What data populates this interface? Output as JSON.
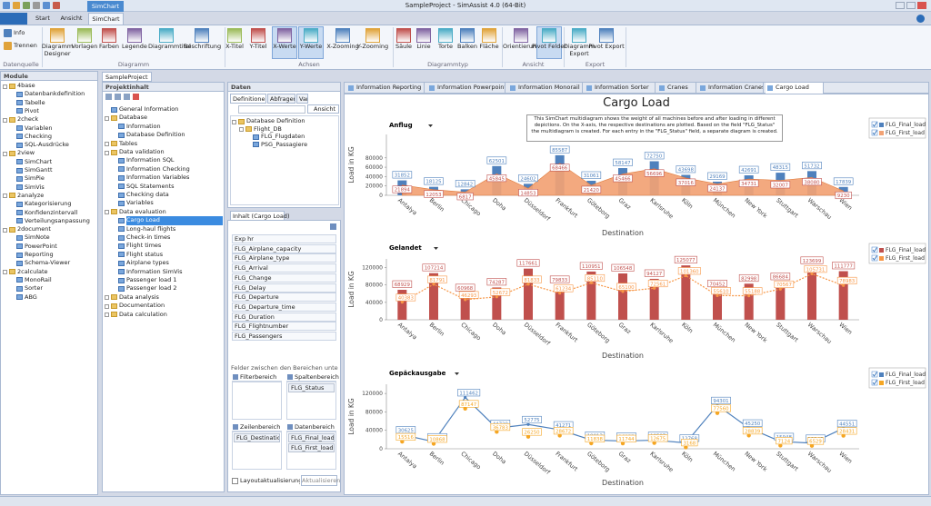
{
  "window": {
    "title": "SampleProject - SimAssist 4.0 (64-Bit)",
    "context_tab": "SimChart",
    "tabs": [
      "Start",
      "Ansicht",
      "SimChart"
    ]
  },
  "ribbon": {
    "groups": [
      {
        "label": "Datenquelle",
        "buttons": [
          "Info",
          "Trennen"
        ]
      },
      {
        "label": "Diagramm",
        "buttons": [
          "Diagramm Designer",
          "Vorlagen",
          "Farben",
          "Legende",
          "Diagrammtitel",
          "Beschriftung"
        ]
      },
      {
        "label": "Achsen",
        "buttons": [
          "X-Titel",
          "Y-Titel",
          "X-Werte",
          "Y-Werte",
          "X-Zooming",
          "Y-Zooming"
        ]
      },
      {
        "label": "Diagrammtyp",
        "buttons": [
          "Säule",
          "Linie",
          "Torte",
          "Balken",
          "Fläche"
        ]
      },
      {
        "label": "Ansicht",
        "buttons": [
          "Orientierung",
          "Pivot Felder"
        ]
      },
      {
        "label": "Export",
        "buttons": [
          "Diagramm Export",
          "Pivot Export"
        ]
      }
    ]
  },
  "modules": {
    "title": "Module",
    "tree": [
      {
        "label": "4base",
        "children": [
          "Datenbankdefinition",
          "Tabelle",
          "Pivot"
        ]
      },
      {
        "label": "2check",
        "children": [
          "Variablen",
          "Checking",
          "SQL-Ausdrücke"
        ]
      },
      {
        "label": "2view",
        "children": [
          "SimChart",
          "SimGantt",
          "SimPie",
          "SimVis"
        ]
      },
      {
        "label": "2analyze",
        "children": [
          "Kategorisierung",
          "Konfidenzintervall",
          "Verteilungsanpassung"
        ]
      },
      {
        "label": "2document",
        "children": [
          "SimNote",
          "PowerPoint",
          "Reporting",
          "Schema-Viewer"
        ]
      },
      {
        "label": "2calculate",
        "children": [
          "MonoRail",
          "Sorter",
          "ABG"
        ]
      }
    ]
  },
  "project": {
    "tab": "SampleProject",
    "title": "Projektinhalt",
    "tree": [
      "General Information",
      {
        "label": "Database",
        "children": [
          "Information",
          "Database Definition"
        ]
      },
      {
        "label": "Tables"
      },
      {
        "label": "Data validation",
        "children": [
          "Information SQL",
          "Information Checking",
          "Information Variables",
          "SQL Statements",
          "Checking data",
          "Variables"
        ]
      },
      {
        "label": "Data evaluation",
        "children": [
          "Cargo Load",
          "Long-haul flights",
          "Check-in times",
          "Flight times",
          "Flight status",
          "Airplane types",
          "Information SimVis",
          "Passenger load 1",
          "Passenger load 2"
        ]
      },
      {
        "label": "Data analysis"
      },
      {
        "label": "Documentation"
      },
      {
        "label": "Data calculation"
      }
    ]
  },
  "data_panel": {
    "title": "Daten",
    "tabs": [
      "Definitionen",
      "Abfragen",
      "Var"
    ],
    "view_button": "Ansicht",
    "tree": [
      {
        "label": "Database Definition",
        "children": [
          {
            "label": "Flight_DB",
            "children": [
              "FLG_Flugdaten",
              "PSG_Passagiere"
            ]
          }
        ]
      }
    ]
  },
  "content_panel": {
    "title": "Inhalt (Cargo Load)",
    "fields": [
      "Exp hr",
      "FLG_Airplane_capacity",
      "FLG_Airplane_type",
      "FLG_Arrival",
      "FLG_Change",
      "FLG_Delay",
      "FLG_Departure",
      "FLG_Departure_time",
      "FLG_Duration",
      "FLG_Flightnumber",
      "FLG_Passengers"
    ],
    "hint": "Felder zwischen den Bereichen unten zieh...",
    "filter_area": "Filterbereich",
    "column_area": "Spaltenbereich",
    "column_fields": [
      "FLG_Status"
    ],
    "row_area": "Zeilenbereich",
    "row_fields": [
      "FLG_Destination"
    ],
    "data_area": "Datenbereich",
    "data_fields": [
      "FLG_Final_load",
      "FLG_First_load"
    ],
    "defer_update": "Layoutaktualisierung zur...",
    "update_button": "Aktualisieren"
  },
  "document": {
    "tabs": [
      "Information Reporting",
      "Information Powerpoint",
      "Information Monorail",
      "Information Sorter",
      "Cranes",
      "Information Cranes",
      "Cargo Load"
    ],
    "title": "Cargo Load",
    "description": "This SimChart multidiagram shows the weight of all machines before and after loading in different depictions. On the X-axis, the respective destinations are plotted. Based on the field \"FLG_Status\" the multidiagram is created. For each entry in the \"FLG_Status\" field, a separate diagram is created."
  },
  "chart_data": [
    {
      "type": "combo",
      "title": "Anflug",
      "x_label": "Destination",
      "y_label": "Load in KG",
      "legend": "right",
      "categories": [
        "Antalya",
        "Berlin",
        "Chicago",
        "Doha",
        "Düsseldorf",
        "Frankfurt",
        "Göteborg",
        "Graz",
        "Karlsruhe",
        "Köln",
        "München",
        "New York",
        "Stuttgart",
        "Warschau",
        "Wien"
      ],
      "series": [
        {
          "name": "FLG_Final_load",
          "type": "bar",
          "color": "#4f81bd",
          "values": [
            31852,
            18125,
            12842,
            62501,
            24602,
            85587,
            31061,
            58147,
            72750,
            43698,
            29169,
            42691,
            48315,
            51732,
            17839
          ]
        },
        {
          "name": "FLG_First_load",
          "type": "area",
          "color": "#f2a274",
          "values": [
            21894,
            12053,
            6817,
            45845,
            14853,
            68466,
            21420,
            45466,
            56696,
            37016,
            24137,
            34731,
            32007,
            38080,
            9230
          ]
        }
      ],
      "ylim": [
        0,
        130000
      ],
      "yticks": [
        0,
        20000,
        40000,
        60000,
        80000
      ]
    },
    {
      "type": "combo",
      "title": "Gelandet",
      "x_label": "Destination",
      "y_label": "Load in KG",
      "legend": "right",
      "categories": [
        "Antalya",
        "Berlin",
        "Chicago",
        "Doha",
        "Düsseldorf",
        "Frankfurt",
        "Göteborg",
        "Graz",
        "Karlsruhe",
        "Köln",
        "München",
        "New York",
        "Stuttgart",
        "Warschau",
        "Wien"
      ],
      "series": [
        {
          "name": "FLG_Final_load",
          "type": "bar",
          "color": "#c0504d",
          "values": [
            68929,
            107214,
            60968,
            74287,
            117661,
            79833,
            110951,
            106548,
            94127,
            125077,
            70452,
            82998,
            86684,
            123699,
            111777
          ]
        },
        {
          "name": "FLG_First_load",
          "type": "line",
          "line_style": "dashed",
          "color": "#f79646",
          "values": [
            40383,
            81791,
            46293,
            52672,
            81833,
            61234,
            85110,
            65100,
            72561,
            101360,
            55610,
            55188,
            70567,
            105731,
            78983
          ]
        }
      ],
      "ylim": [
        0,
        140000
      ],
      "yticks": [
        0,
        40000,
        80000,
        120000
      ]
    },
    {
      "type": "combo",
      "title": "Gepäckausgabe",
      "x_label": "Destination",
      "y_label": "Load in KG",
      "legend": "right",
      "categories": [
        "Antalya",
        "Berlin",
        "Chicago",
        "Doha",
        "Düsseldorf",
        "Frankfurt",
        "Göteborg",
        "Graz",
        "Karlsruhe",
        "Köln",
        "München",
        "New York",
        "Stuttgart",
        "Warschau",
        "Wien"
      ],
      "series": [
        {
          "name": "FLG_Final_load",
          "type": "line",
          "line_style": "solid",
          "color": "#4f81bd",
          "values": [
            30625,
            15264,
            111462,
            44729,
            52775,
            41271,
            19013,
            16857,
            18587,
            12768,
            94301,
            45250,
            15948,
            12245,
            44551
          ]
        },
        {
          "name": "FLG_First_load",
          "type": "scatter",
          "color": "#f5a623",
          "values": [
            15516,
            10868,
            87147,
            36783,
            26250,
            28672,
            11838,
            11744,
            12675,
            3168,
            77560,
            28839,
            7124,
            6529,
            28431
          ]
        }
      ],
      "ylim": [
        0,
        140000
      ],
      "yticks": [
        0,
        40000,
        80000,
        120000
      ]
    }
  ]
}
